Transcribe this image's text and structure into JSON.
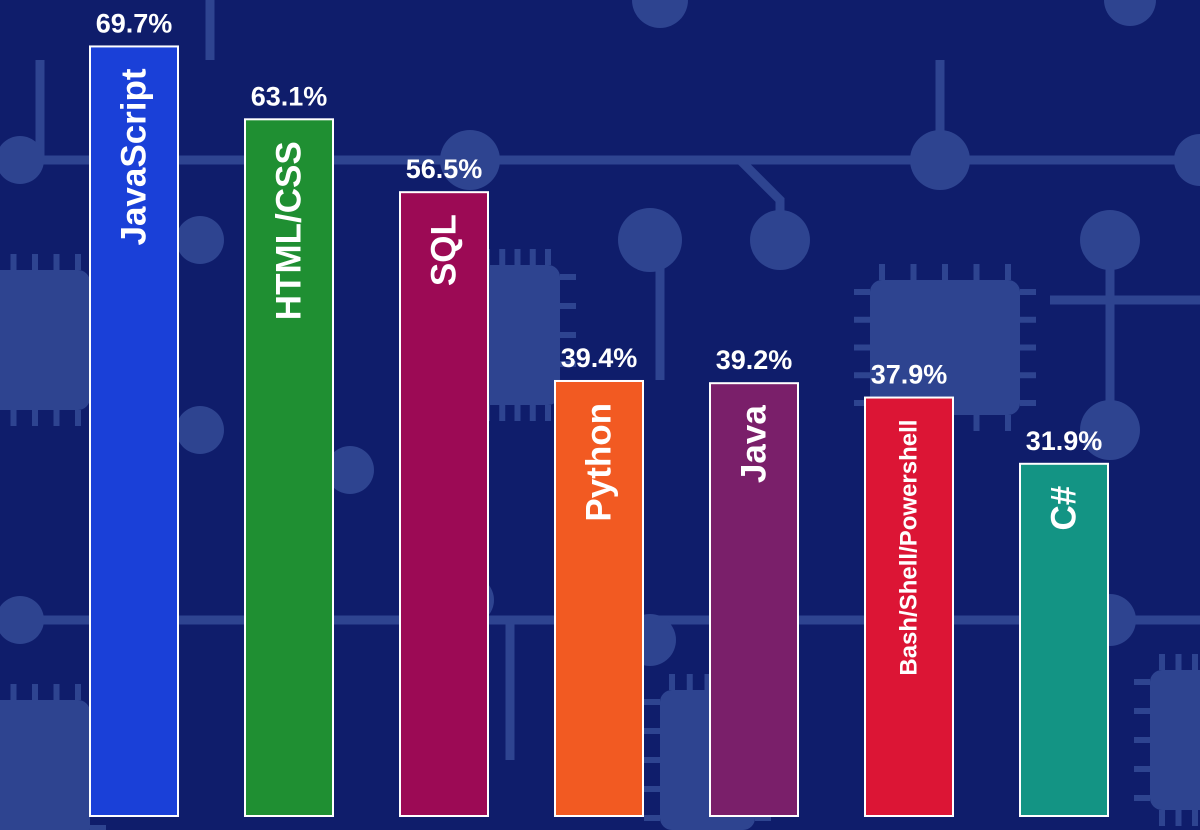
{
  "chart_data": {
    "type": "bar",
    "orientation": "vertical",
    "categories": [
      "JavaScript",
      "HTML/CSS",
      "SQL",
      "Python",
      "Java",
      "Bash/Shell/Powershell",
      "C#"
    ],
    "values": [
      69.7,
      63.1,
      56.5,
      39.4,
      39.2,
      37.9,
      31.9
    ],
    "value_labels": [
      "69.7%",
      "63.1%",
      "56.5%",
      "39.4%",
      "39.2%",
      "37.9%",
      "31.9%"
    ],
    "colors": [
      "#1a40d8",
      "#1f8f32",
      "#9c0a55",
      "#f25a22",
      "#7a1f6a",
      "#dc1535",
      "#139484"
    ],
    "unit": "%",
    "title": "",
    "xlabel": "",
    "ylabel": "",
    "ylim": [
      0,
      73
    ]
  },
  "background": {
    "base_color": "#0f1d6b",
    "circuit_color": "#2e4490",
    "motif": "circuit-board"
  }
}
